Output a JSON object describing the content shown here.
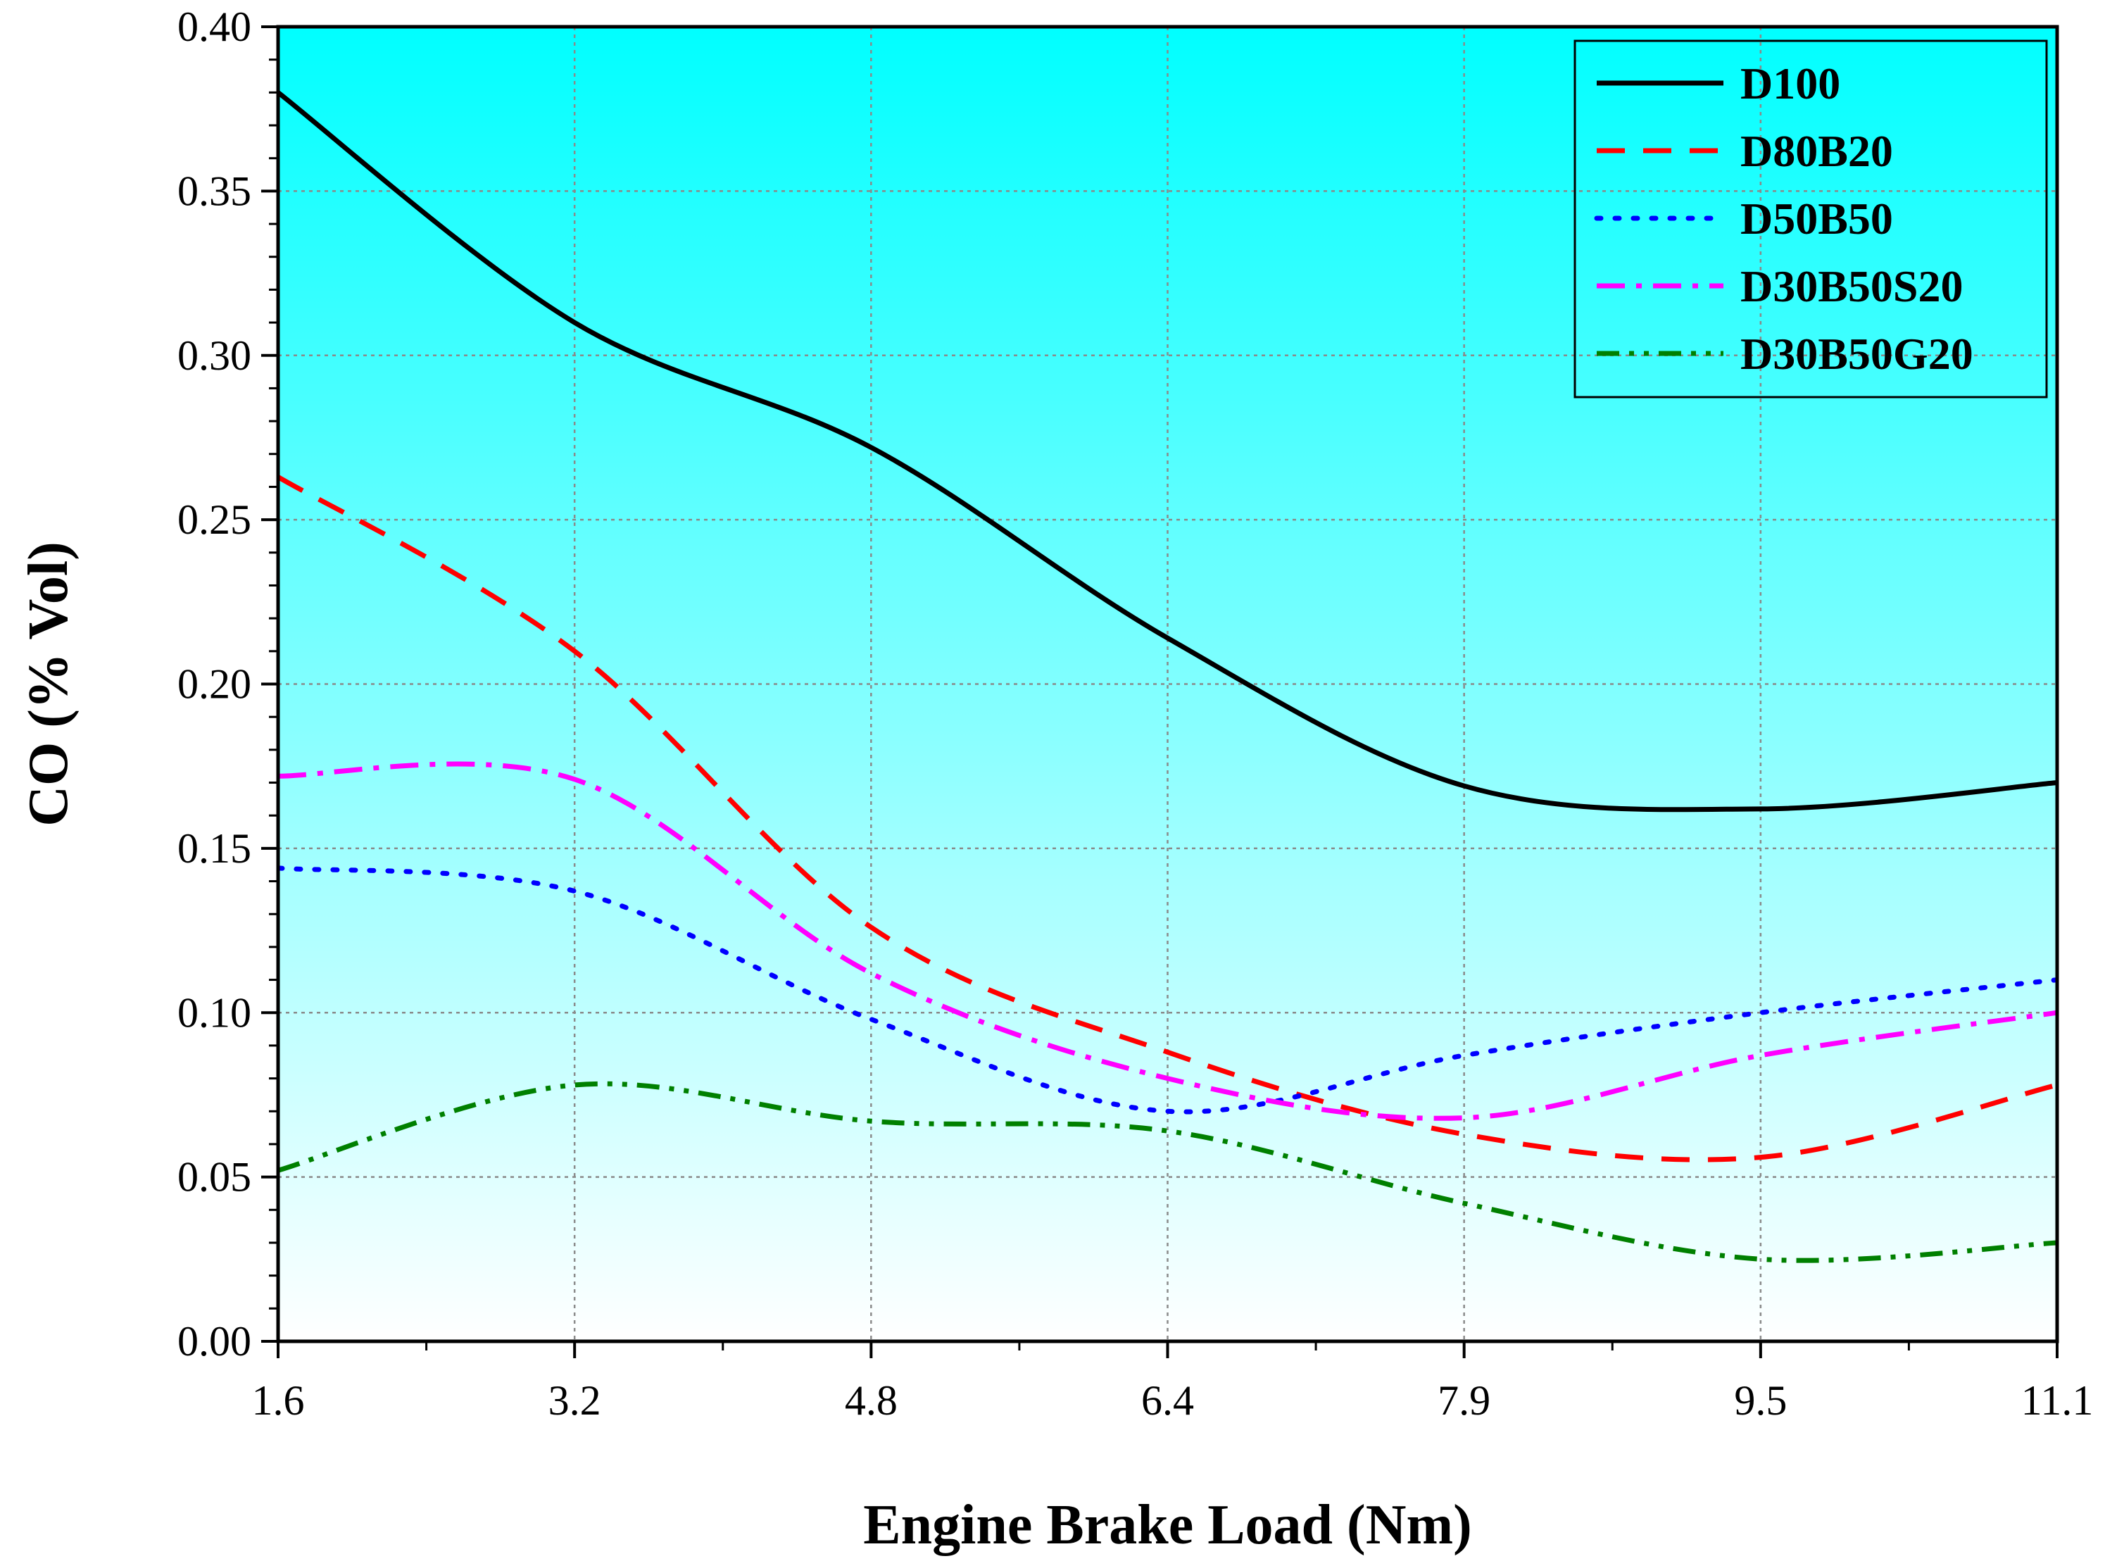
{
  "chart_data": {
    "type": "line",
    "title": "",
    "xlabel": "Engine Brake Load (Nm)",
    "ylabel": "CO (% Vol)",
    "x": [
      1.6,
      3.2,
      4.8,
      6.4,
      7.9,
      9.5,
      11.1
    ],
    "x_tick_labels": [
      "1.6",
      "3.2",
      "4.8",
      "6.4",
      "7.9",
      "9.5",
      "11.1"
    ],
    "ylim": [
      0,
      0.4
    ],
    "y_ticks": [
      0,
      0.05,
      0.1,
      0.15,
      0.2,
      0.25,
      0.3,
      0.35,
      0.4
    ],
    "y_tick_labels": [
      "0.00",
      "0.05",
      "0.10",
      "0.15",
      "0.20",
      "0.25",
      "0.30",
      "0.35",
      "0.40"
    ],
    "grid": true,
    "legend_position": "top-right",
    "background_gradient": [
      "#00ffff",
      "#ffffff"
    ],
    "series": [
      {
        "name": "D100",
        "values": [
          0.38,
          0.31,
          0.272,
          0.214,
          0.169,
          0.162,
          0.17
        ],
        "color": "#000000",
        "dash": "solid"
      },
      {
        "name": "D80B20",
        "values": [
          0.263,
          0.21,
          0.126,
          0.088,
          0.063,
          0.056,
          0.078
        ],
        "color": "#ff0000",
        "dash": "dashed"
      },
      {
        "name": "D50B50",
        "values": [
          0.144,
          0.137,
          0.098,
          0.07,
          0.087,
          0.1,
          0.11
        ],
        "color": "#0000ff",
        "dash": "dotted"
      },
      {
        "name": "D30B50S20",
        "values": [
          0.172,
          0.171,
          0.112,
          0.08,
          0.068,
          0.087,
          0.1
        ],
        "color": "#ff00ff",
        "dash": "dashdot"
      },
      {
        "name": "D30B50G20",
        "values": [
          0.052,
          0.078,
          0.067,
          0.064,
          0.042,
          0.025,
          0.03
        ],
        "color": "#008000",
        "dash": "dashdotdot"
      }
    ]
  }
}
